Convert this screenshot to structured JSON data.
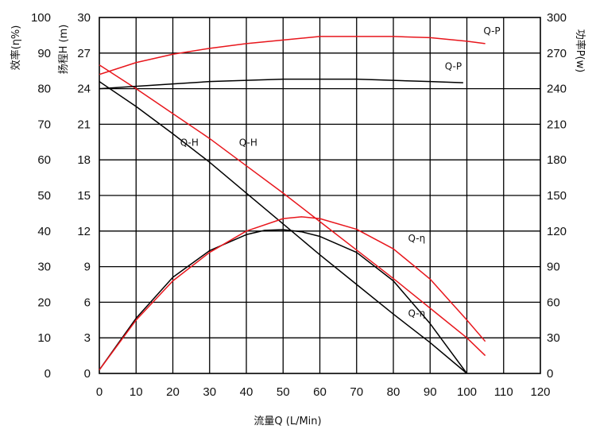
{
  "chart_data": {
    "type": "line",
    "xlabel": "流量Q (L/Min)",
    "ylabel_left_outer": "效率(η%)",
    "ylabel_left_inner": "扬程H (m)",
    "ylabel_right": "功率P(w)",
    "xlim": [
      0,
      120
    ],
    "ylim_efficiency": [
      0,
      100
    ],
    "ylim_head": [
      0,
      30
    ],
    "ylim_power": [
      0,
      300
    ],
    "x_ticks": [
      "0",
      "10",
      "20",
      "30",
      "40",
      "50",
      "60",
      "70",
      "80",
      "90",
      "100",
      "110",
      "120"
    ],
    "y_ticks_efficiency": [
      "0",
      "10",
      "20",
      "30",
      "40",
      "50",
      "60",
      "70",
      "80",
      "90",
      "100"
    ],
    "y_ticks_head": [
      "0",
      "3",
      "6",
      "9",
      "12",
      "15",
      "18",
      "21",
      "24",
      "27",
      "30"
    ],
    "y_ticks_power": [
      "0",
      "30",
      "60",
      "90",
      "120",
      "150",
      "180",
      "210",
      "240",
      "270",
      "300"
    ],
    "grid": true,
    "series": [
      {
        "name": "Q-H",
        "color": "#000000",
        "axis": "head",
        "x": [
          0,
          10,
          20,
          30,
          40,
          50,
          60,
          70,
          80,
          90,
          100
        ],
        "y": [
          24.6,
          22.5,
          20.2,
          17.8,
          15.2,
          12.6,
          10.0,
          7.5,
          5.0,
          2.6,
          0
        ]
      },
      {
        "name": "Q-H",
        "color": "#e8161c",
        "axis": "head",
        "x": [
          0,
          10,
          20,
          30,
          40,
          50,
          60,
          70,
          80,
          90,
          100,
          105
        ],
        "y": [
          26.0,
          24.0,
          21.9,
          19.8,
          17.5,
          15.2,
          12.8,
          10.4,
          8.0,
          5.5,
          3.0,
          1.5
        ]
      },
      {
        "name": "Q-P",
        "color": "#000000",
        "axis": "power",
        "x": [
          0,
          10,
          20,
          30,
          40,
          50,
          60,
          70,
          80,
          90,
          99
        ],
        "y": [
          240,
          242,
          244,
          246,
          247,
          248,
          248,
          248,
          247,
          246,
          245
        ]
      },
      {
        "name": "Q-P",
        "color": "#e8161c",
        "axis": "power",
        "x": [
          0,
          10,
          20,
          30,
          40,
          50,
          60,
          70,
          80,
          90,
          100,
          105
        ],
        "y": [
          252,
          262,
          269,
          274,
          278,
          281,
          284,
          284,
          284,
          283,
          280,
          278
        ]
      },
      {
        "name": "Q-η",
        "color": "#000000",
        "axis": "efficiency",
        "x": [
          0,
          10,
          20,
          30,
          40,
          45,
          50,
          55,
          60,
          70,
          80,
          90,
          95,
          100
        ],
        "y": [
          1,
          15.5,
          27,
          34.5,
          39,
          40.2,
          40.4,
          39.8,
          38.5,
          34,
          26,
          14,
          7,
          0
        ]
      },
      {
        "name": "Q-η",
        "color": "#e8161c",
        "axis": "efficiency",
        "x": [
          0,
          10,
          20,
          30,
          40,
          50,
          55,
          60,
          70,
          80,
          90,
          100,
          105
        ],
        "y": [
          1,
          15,
          26,
          34,
          40,
          43.5,
          44,
          43.5,
          40.5,
          35,
          26.5,
          15,
          9
        ]
      }
    ],
    "annotations": [
      {
        "text": "Q-P",
        "x": 104.5,
        "y_power": 286
      },
      {
        "text": "Q-P",
        "x": 94,
        "y_power": 256
      },
      {
        "text": "Q-H",
        "x": 22,
        "y_head": 19.2
      },
      {
        "text": "Q-H",
        "x": 38,
        "y_head": 19.2
      },
      {
        "text": "Q-η",
        "x": 84,
        "y_efficiency": 37
      },
      {
        "text": "Q-η",
        "x": 84,
        "y_efficiency": 16
      }
    ]
  }
}
